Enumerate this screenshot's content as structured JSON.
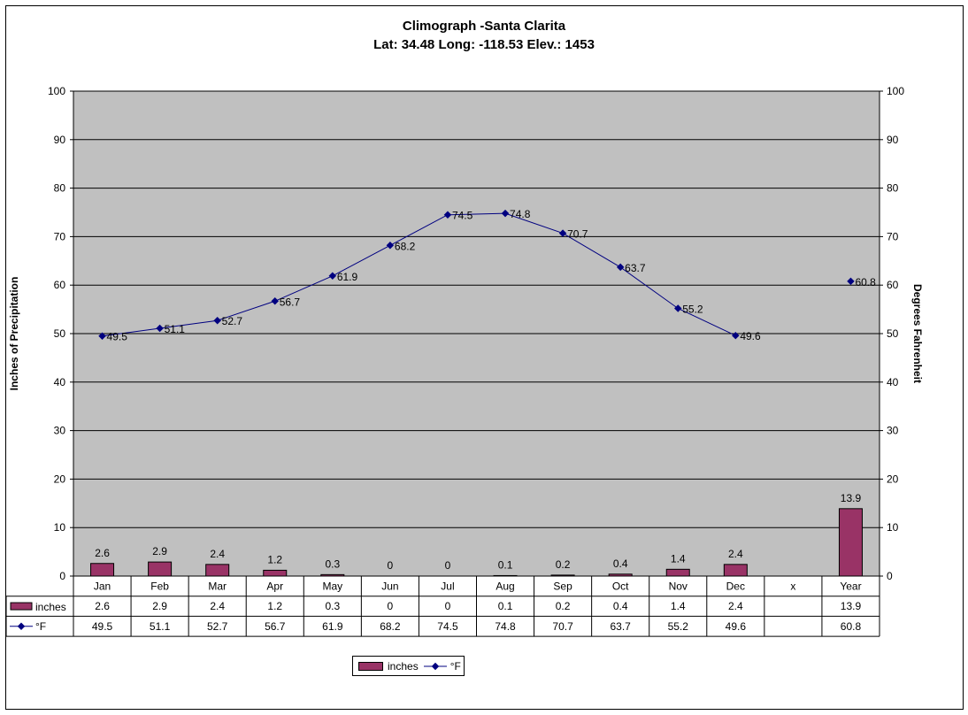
{
  "chart_data": {
    "type": "bar+line",
    "title": "Climograph -Santa Clarita",
    "subtitle": "Lat: 34.48 Long: -118.53 Elev.: 1453",
    "ylabel_left": "Inches of Precipitation",
    "ylabel_right": "Degrees Fahrenheit",
    "ylim": [
      0,
      100
    ],
    "yticks": [
      0,
      10,
      20,
      30,
      40,
      50,
      60,
      70,
      80,
      90,
      100
    ],
    "grid": true,
    "categories": [
      "Jan",
      "Feb",
      "Mar",
      "Apr",
      "May",
      "Jun",
      "Jul",
      "Aug",
      "Sep",
      "Oct",
      "Nov",
      "Dec",
      "x",
      "Year"
    ],
    "series": [
      {
        "name": "inches",
        "type": "bar",
        "color": "#993366",
        "values": [
          2.6,
          2.9,
          2.4,
          1.2,
          0.3,
          0,
          0,
          0.1,
          0.2,
          0.4,
          1.4,
          2.4,
          null,
          13.9
        ]
      },
      {
        "name": "°F",
        "type": "line",
        "color": "#000080",
        "values": [
          49.5,
          51.1,
          52.7,
          56.7,
          61.9,
          68.2,
          74.5,
          74.8,
          70.7,
          63.7,
          55.2,
          49.6,
          null,
          60.8
        ]
      }
    ],
    "data_table": {
      "rows": [
        {
          "label": "inches",
          "cells": [
            "2.6",
            "2.9",
            "2.4",
            "1.2",
            "0.3",
            "0",
            "0",
            "0.1",
            "0.2",
            "0.4",
            "1.4",
            "2.4",
            "",
            "13.9"
          ]
        },
        {
          "label": "°F",
          "cells": [
            "49.5",
            "51.1",
            "52.7",
            "56.7",
            "61.9",
            "68.2",
            "74.5",
            "74.8",
            "70.7",
            "63.7",
            "55.2",
            "49.6",
            "",
            "60.8"
          ]
        }
      ]
    },
    "legend": {
      "position": "bottom",
      "entries": [
        "inches",
        "°F"
      ]
    },
    "plot_background": "#c0c0c0"
  }
}
